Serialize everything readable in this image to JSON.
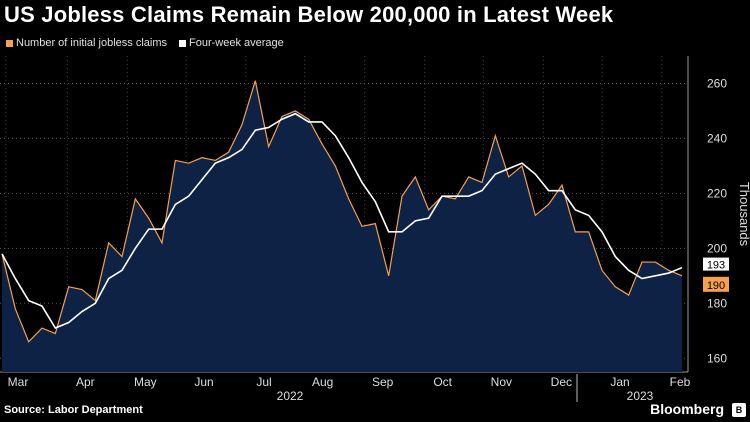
{
  "header": {
    "title": "US Jobless Claims Remain Below 200,000 in Latest Week"
  },
  "legend": [
    {
      "label": "Number of initial jobless claims",
      "color": "#f5a04a"
    },
    {
      "label": "Four-week average",
      "color": "#ffffff"
    }
  ],
  "footer": {
    "source": "Source: Labor Department",
    "brand": "Bloomberg"
  },
  "chart_data": {
    "type": "area",
    "title": "US Jobless Claims Remain Below 200,000 in Latest Week",
    "ylabel": "Thousands",
    "ylim": [
      155,
      270
    ],
    "yticks": [
      160,
      180,
      200,
      220,
      240,
      260
    ],
    "x_labels": [
      "Mar",
      "Apr",
      "May",
      "Jun",
      "Jul",
      "Aug",
      "Sep",
      "Oct",
      "Nov",
      "Dec",
      "Jan",
      "Feb"
    ],
    "year_labels": [
      "2022",
      "2023"
    ],
    "grid": "horizontal dotted",
    "fill_color": "#0d2244",
    "series": [
      {
        "name": "Number of initial jobless claims",
        "color": "#f5a04a",
        "values": [
          198,
          178,
          166,
          171,
          169,
          186,
          185,
          181,
          202,
          197,
          218,
          211,
          202,
          232,
          231,
          233,
          232,
          235,
          245,
          261,
          237,
          248,
          250,
          247,
          238,
          230,
          218,
          208,
          209,
          190,
          219,
          226,
          214,
          219,
          218,
          226,
          224,
          241,
          226,
          230,
          212,
          216,
          223,
          206,
          206,
          192,
          186,
          183,
          195,
          195,
          192,
          190
        ]
      },
      {
        "name": "Four-week average",
        "color": "#ffffff",
        "values": [
          198,
          189,
          181,
          179,
          171,
          173,
          177,
          180,
          189,
          192,
          200,
          207,
          207,
          216,
          219,
          225,
          231,
          233,
          236,
          243,
          244,
          247,
          249,
          246,
          246,
          241,
          233,
          224,
          217,
          206,
          206,
          210,
          211,
          219,
          219,
          219,
          221,
          227,
          229,
          231,
          227,
          221,
          221,
          214,
          212,
          206,
          197,
          192,
          189,
          190,
          191,
          193
        ]
      }
    ],
    "last_value_labels": [
      "193",
      "190"
    ]
  }
}
